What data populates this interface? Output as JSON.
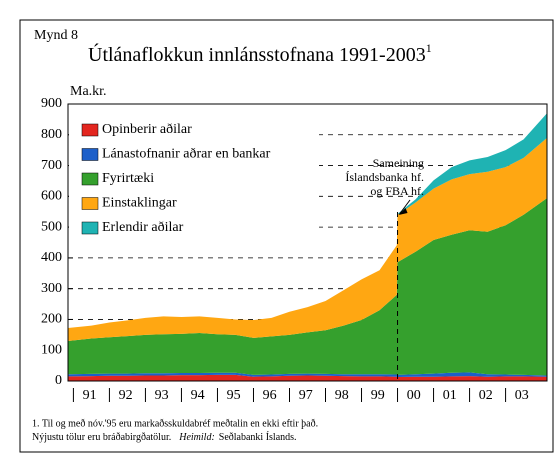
{
  "chart_data": {
    "type": "stacked_area",
    "figure_label": "Mynd 8",
    "title": "Útlánaflokkun innlánsstofnana 1991-2003",
    "title_superscript": "1",
    "y_unit": "Ma.kr.",
    "annotation": [
      "Sameining",
      "Íslandsbanka hf.",
      "og FBA hf."
    ],
    "event_x": 2000,
    "footnote": [
      "1. Til og með nóv.'95 eru markaðsskuldabréf meðtalin en ekki eftir það.",
      "Nýjustu tölur eru bráðabirgðatölur.",
      "Heimild:",
      "Seðlabanki Íslands."
    ],
    "x": [
      1990.85,
      1991.5,
      1992,
      1992.5,
      1993,
      1993.5,
      1994,
      1994.5,
      1995,
      1995.5,
      1996,
      1996.5,
      1997,
      1997.5,
      1998,
      1998.5,
      1999,
      1999.5,
      1999.98,
      2000.0,
      2000.5,
      2001,
      2001.5,
      2002,
      2002.5,
      2003,
      2003.5,
      2004.15
    ],
    "xlim": [
      1990.85,
      2004.15
    ],
    "xticks": [
      {
        "value": 1991,
        "label": "91"
      },
      {
        "value": 1992,
        "label": "92"
      },
      {
        "value": 1993,
        "label": "93"
      },
      {
        "value": 1994,
        "label": "94"
      },
      {
        "value": 1995,
        "label": "95"
      },
      {
        "value": 1996,
        "label": "96"
      },
      {
        "value": 1997,
        "label": "97"
      },
      {
        "value": 1998,
        "label": "98"
      },
      {
        "value": 1999,
        "label": "99"
      },
      {
        "value": 2000,
        "label": "00"
      },
      {
        "value": 2001,
        "label": "01"
      },
      {
        "value": 2002,
        "label": "02"
      },
      {
        "value": 2003,
        "label": "03"
      }
    ],
    "ylim": [
      0,
      900
    ],
    "yticks": [
      0,
      100,
      200,
      300,
      400,
      500,
      600,
      700,
      800,
      900
    ],
    "grid": true,
    "legend": "upper left",
    "series": [
      {
        "name": "Opinberir aðilar",
        "color": "#e3261f",
        "values": [
          15,
          16,
          17,
          17,
          18,
          18,
          19,
          19,
          20,
          20,
          14,
          15,
          17,
          18,
          17,
          16,
          15,
          15,
          14,
          13,
          14,
          14,
          15,
          16,
          14,
          15,
          15,
          14
        ]
      },
      {
        "name": "Lánastofnanir aðrar en bankar",
        "color": "#1c5fc9",
        "values": [
          7,
          7,
          7,
          7,
          7,
          7,
          7,
          7,
          7,
          7,
          6,
          6,
          6,
          6,
          6,
          6,
          7,
          7,
          7,
          7,
          8,
          10,
          12,
          12,
          8,
          6,
          5,
          4
        ]
      },
      {
        "name": "Fyrirtæki",
        "color": "#35a02d",
        "values": [
          108,
          115,
          118,
          122,
          125,
          127,
          127,
          130,
          125,
          123,
          120,
          124,
          127,
          134,
          142,
          158,
          176,
          208,
          259,
          366,
          398,
          434,
          448,
          462,
          463,
          485,
          520,
          576
        ]
      },
      {
        "name": "Einstaklingar",
        "color": "#ffa712",
        "values": [
          42,
          42,
          48,
          51,
          55,
          58,
          55,
          54,
          53,
          50,
          58,
          60,
          75,
          82,
          95,
          115,
          132,
          130,
          161,
          154,
          160,
          167,
          180,
          182,
          195,
          189,
          185,
          196
        ]
      },
      {
        "name": "Erlendir aðilar",
        "color": "#1fb3b3",
        "values": [
          0,
          0,
          0,
          0,
          0,
          0,
          0,
          0,
          0,
          0,
          0,
          0,
          0,
          0,
          0,
          0,
          0,
          0,
          0,
          3,
          10,
          27,
          40,
          45,
          48,
          55,
          60,
          80
        ]
      }
    ]
  }
}
